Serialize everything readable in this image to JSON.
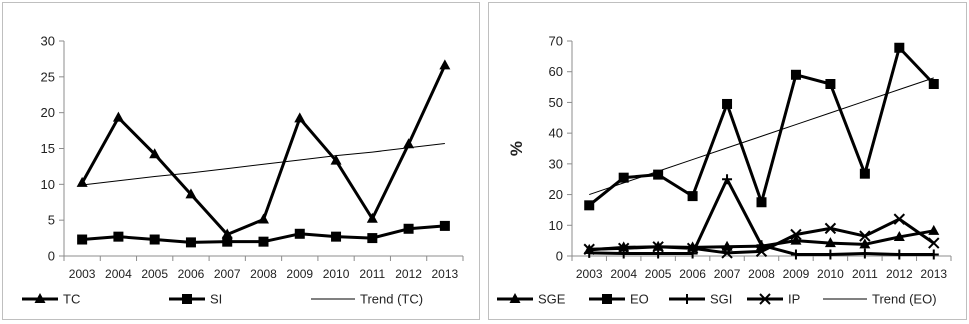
{
  "chart_data": [
    {
      "type": "line",
      "x": [
        "2003",
        "2004",
        "2005",
        "2006",
        "2007",
        "2008",
        "2009",
        "2010",
        "2011",
        "2012",
        "2013"
      ],
      "ylim": [
        0,
        30
      ],
      "yticks": [
        0,
        5,
        10,
        15,
        20,
        25,
        30
      ],
      "xlabel": "",
      "ylabel": "",
      "grid": false,
      "legend_position": "bottom",
      "series": [
        {
          "name": "TC",
          "marker": "triangle",
          "style": "thick",
          "values": [
            10.2,
            19.3,
            14.2,
            8.6,
            3.0,
            5.1,
            19.2,
            13.3,
            5.2,
            15.6,
            26.6
          ]
        },
        {
          "name": "SI",
          "marker": "square",
          "style": "thick",
          "values": [
            2.3,
            2.7,
            2.3,
            1.9,
            2.0,
            2.0,
            3.1,
            2.7,
            2.5,
            3.8,
            4.2
          ]
        },
        {
          "name": "Trend (TC)",
          "marker": "none",
          "style": "thin",
          "values": [
            9.9,
            10.5,
            11.1,
            11.6,
            12.2,
            12.8,
            13.4,
            14.0,
            14.5,
            15.1,
            15.7
          ]
        }
      ]
    },
    {
      "type": "line",
      "x": [
        "2003",
        "2004",
        "2005",
        "2006",
        "2007",
        "2008",
        "2009",
        "2010",
        "2011",
        "2012",
        "2013"
      ],
      "ylim": [
        0,
        70
      ],
      "yticks": [
        0,
        10,
        20,
        30,
        40,
        50,
        60,
        70
      ],
      "xlabel": "",
      "ylabel": "%",
      "grid": false,
      "legend_position": "bottom",
      "series": [
        {
          "name": "SGE",
          "marker": "triangle",
          "style": "thick",
          "values": [
            2.0,
            2.8,
            3.0,
            2.8,
            3.0,
            3.2,
            5.0,
            4.2,
            3.8,
            6.2,
            8.2
          ]
        },
        {
          "name": "EO",
          "marker": "square",
          "style": "thick",
          "values": [
            16.5,
            25.5,
            26.5,
            19.5,
            49.5,
            17.5,
            59.0,
            56.0,
            26.8,
            67.8,
            56.0
          ]
        },
        {
          "name": "SGI",
          "marker": "plus",
          "style": "thick",
          "values": [
            1.0,
            0.8,
            0.8,
            0.8,
            25.0,
            3.5,
            0.5,
            0.5,
            0.8,
            0.5,
            0.5
          ]
        },
        {
          "name": "IP",
          "marker": "x",
          "style": "thick",
          "values": [
            2.2,
            2.5,
            3.0,
            2.5,
            1.0,
            1.5,
            7.0,
            9.0,
            6.5,
            12.0,
            4.2
          ]
        },
        {
          "name": "Trend (EO)",
          "marker": "none",
          "style": "thin",
          "values": [
            20.0,
            23.8,
            27.6,
            31.4,
            35.2,
            39.0,
            42.8,
            46.6,
            50.4,
            54.2,
            58.0
          ]
        }
      ]
    }
  ]
}
